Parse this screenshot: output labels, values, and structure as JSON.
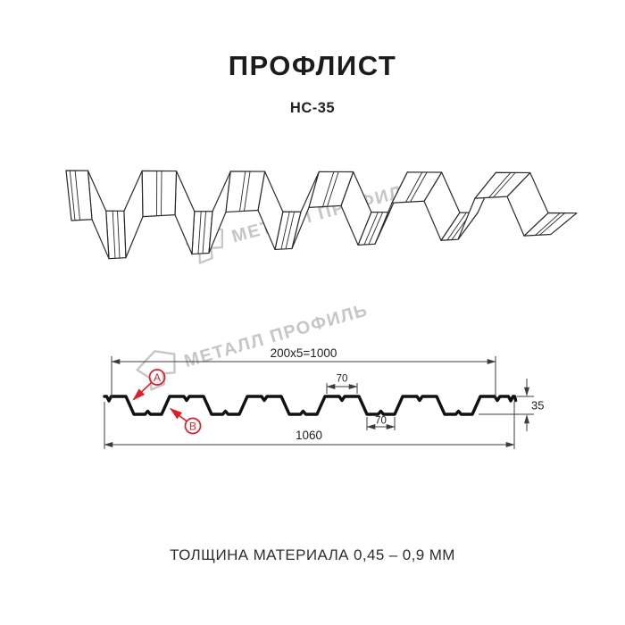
{
  "header": {
    "title": "ПРОФЛИСТ",
    "subtitle": "НС-35"
  },
  "watermark": {
    "text": "МЕТАЛЛ ПРОФИЛЬ"
  },
  "diagram": {
    "dimensions": {
      "coverage_width": "200x5=1000",
      "rib_top_width": "70",
      "rib_bottom_width": "70",
      "overall_width": "1060",
      "profile_height": "35"
    },
    "callouts": {
      "a": "A",
      "b": "B"
    }
  },
  "footer": {
    "thickness_note": "ТОЛЩИНА МАТЕРИАЛА 0,45 – 0,9 ММ"
  },
  "colors": {
    "accent_red": "#e21d24",
    "line": "#2b2b2b",
    "watermark_gray": "#bdbdbd"
  }
}
